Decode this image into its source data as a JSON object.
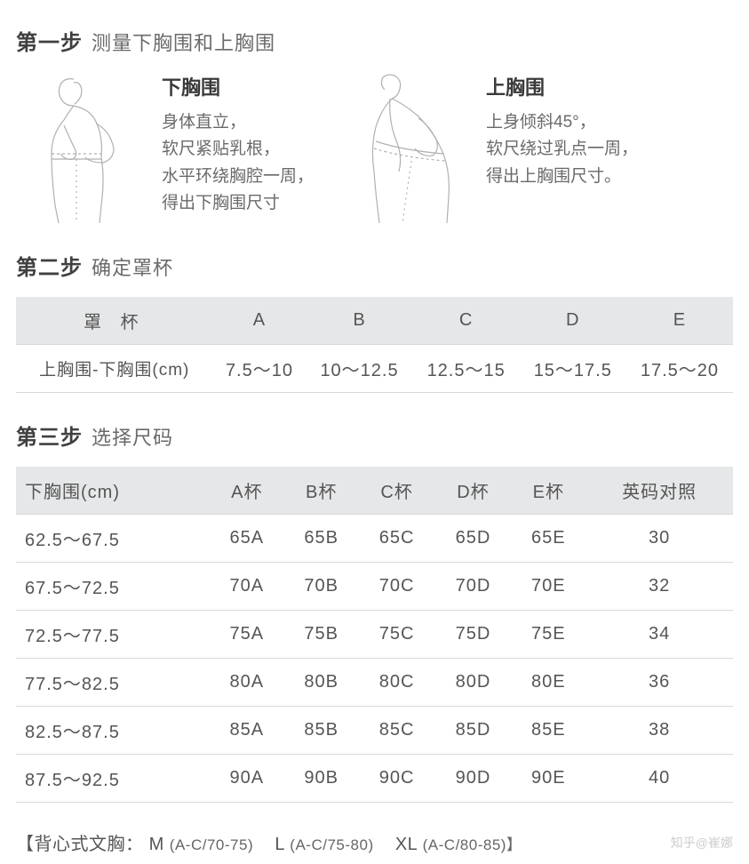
{
  "colors": {
    "bg": "#ffffff",
    "heading": "#404040",
    "text": "#555555",
    "subtext": "#6a6a6a",
    "header_bg": "#e6e7e8",
    "border": "#d8d8d8",
    "watermark": "#b8b8b8",
    "stroke": "#b0b0b0"
  },
  "step1": {
    "label": "第一步",
    "title": "测量下胸围和上胸围",
    "left": {
      "title": "下胸围",
      "lines": [
        "身体直立，",
        "软尺紧贴乳根，",
        "水平环绕胸腔一周，",
        "得出下胸围尺寸"
      ]
    },
    "right": {
      "title": "上胸围",
      "lines": [
        "上身倾斜45°，",
        "软尺绕过乳点一周，",
        "得出上胸围尺寸。"
      ]
    }
  },
  "step2": {
    "label": "第二步",
    "title": "确定罩杯",
    "table": {
      "header": [
        "罩 杯",
        "A",
        "B",
        "C",
        "D",
        "E"
      ],
      "row_label": "上胸围-下胸围(cm)",
      "row": [
        "7.5～10",
        "10～12.5",
        "12.5～15",
        "15～17.5",
        "17.5～20"
      ]
    }
  },
  "step3": {
    "label": "第三步",
    "title": "选择尺码",
    "table": {
      "header": [
        "下胸围(cm)",
        "A杯",
        "B杯",
        "C杯",
        "D杯",
        "E杯",
        "英码对照"
      ],
      "rows": [
        [
          "62.5～67.5",
          "65A",
          "65B",
          "65C",
          "65D",
          "65E",
          "30"
        ],
        [
          "67.5～72.5",
          "70A",
          "70B",
          "70C",
          "70D",
          "70E",
          "32"
        ],
        [
          "72.5～77.5",
          "75A",
          "75B",
          "75C",
          "75D",
          "75E",
          "34"
        ],
        [
          "77.5～82.5",
          "80A",
          "80B",
          "80C",
          "80D",
          "80E",
          "36"
        ],
        [
          "82.5～87.5",
          "85A",
          "85B",
          "85C",
          "85D",
          "85E",
          "38"
        ],
        [
          "87.5～92.5",
          "90A",
          "90B",
          "90C",
          "90D",
          "90E",
          "40"
        ]
      ]
    }
  },
  "footer": {
    "prefix": "【背心式文胸：",
    "m": "M",
    "m_range": "(A-C/70-75)",
    "l": "L",
    "l_range": "(A-C/75-80)",
    "xl": "XL",
    "xl_range": "(A-C/80-85)】"
  },
  "watermark": "知乎@崔娜"
}
